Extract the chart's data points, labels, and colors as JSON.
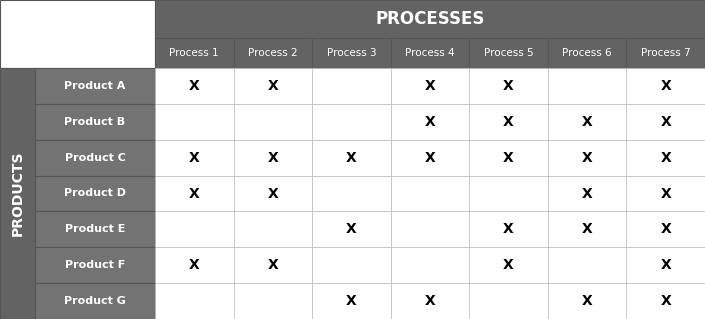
{
  "title": "PROCESSES",
  "col_header": [
    "Process 1",
    "Process 2",
    "Process 3",
    "Process 4",
    "Process 5",
    "Process 6",
    "Process 7"
  ],
  "row_header": [
    "Product A",
    "Product B",
    "Product C",
    "Product D",
    "Product E",
    "Product F",
    "Product G"
  ],
  "row_label": "PRODUCTS",
  "matrix": [
    [
      1,
      1,
      0,
      1,
      1,
      0,
      1
    ],
    [
      0,
      0,
      0,
      1,
      1,
      1,
      1
    ],
    [
      1,
      1,
      1,
      1,
      1,
      1,
      1
    ],
    [
      1,
      1,
      0,
      0,
      0,
      1,
      1
    ],
    [
      0,
      0,
      1,
      0,
      1,
      1,
      1
    ],
    [
      1,
      1,
      0,
      0,
      1,
      0,
      1
    ],
    [
      0,
      0,
      1,
      1,
      0,
      1,
      1
    ]
  ],
  "dark_bg": "#636363",
  "header_text_color": "#ffffff",
  "row_header_bg": "#737373",
  "row_header_text_color": "#ffffff",
  "cell_bg": "#ffffff",
  "marker": "X",
  "marker_color": "#000000",
  "left_label_bg": "#636363",
  "left_label_text_color": "#ffffff",
  "process_header_bg": "#636363",
  "process_header_text_color": "#ffffff",
  "top_left_bg": "#ffffff",
  "border_dark": "#555555",
  "border_light": "#bbbbbb"
}
